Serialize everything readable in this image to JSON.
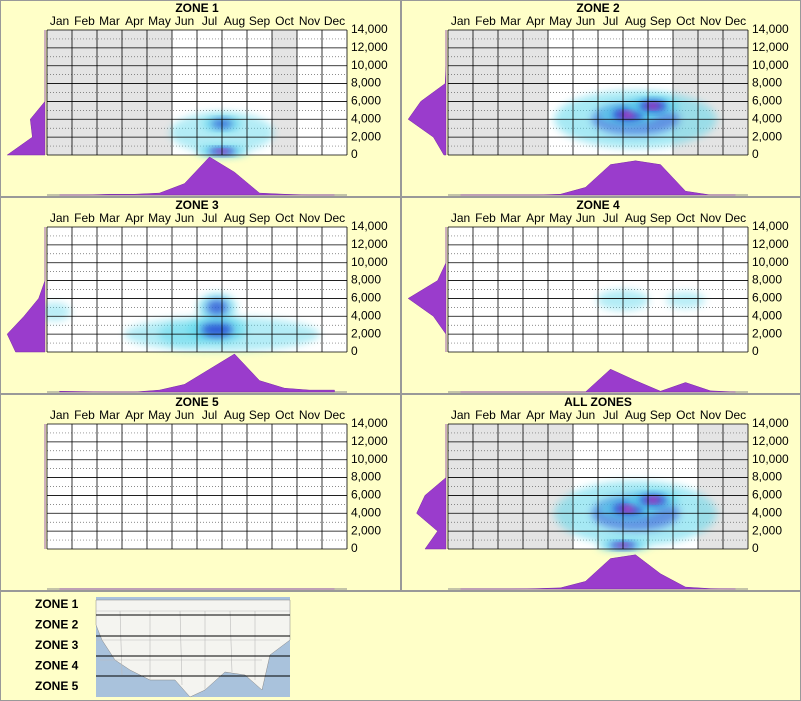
{
  "chart_data": [
    {
      "type": "heatmap",
      "title": "ZONE 1",
      "categories": [
        "Jan",
        "Feb",
        "Mar",
        "Apr",
        "May",
        "Jun",
        "Jul",
        "Aug",
        "Sep",
        "Oct",
        "Nov",
        "Dec"
      ],
      "ylim": [
        0,
        14000
      ],
      "yticks": [
        0,
        {
          "value": 2000,
          "label": "2,000"
        },
        {
          "value": 4000,
          "label": "4,000"
        },
        {
          "value": 6000,
          "label": "6,000"
        },
        {
          "value": 8000,
          "label": "8,000"
        },
        {
          "value": 10000,
          "label": "10,000"
        },
        {
          "value": 12000,
          "label": "12,000"
        },
        {
          "value": 14000,
          "label": "14,000"
        }
      ],
      "shaded": [
        true,
        true,
        true,
        true,
        true,
        false,
        false,
        false,
        false,
        true,
        false,
        false
      ],
      "hotspots": [
        {
          "x": 7.0,
          "y": 2500,
          "rx": 1.6,
          "ry": 1800,
          "intensity": 0.3
        },
        {
          "x": 7.0,
          "y": 3500,
          "rx": 0.6,
          "ry": 700,
          "intensity": 0.7
        },
        {
          "x": 7.0,
          "y": 400,
          "rx": 0.8,
          "ry": 500,
          "intensity": 1.0
        }
      ],
      "month_density": [
        0,
        0,
        0.02,
        0.02,
        0.05,
        0.3,
        1.0,
        0.6,
        0.05,
        0.02,
        0,
        0
      ],
      "value_density": [
        0.9,
        0.3,
        0.35,
        0,
        0,
        0,
        0,
        0
      ]
    },
    {
      "type": "heatmap",
      "title": "ZONE 2",
      "categories": [
        "Jan",
        "Feb",
        "Mar",
        "Apr",
        "May",
        "Jun",
        "Jul",
        "Aug",
        "Sep",
        "Oct",
        "Nov",
        "Dec"
      ],
      "ylim": [
        0,
        14000
      ],
      "yticks": [
        0,
        {
          "value": 2000,
          "label": "2,000"
        },
        {
          "value": 4000,
          "label": "4,000"
        },
        {
          "value": 6000,
          "label": "6,000"
        },
        {
          "value": 8000,
          "label": "8,000"
        },
        {
          "value": 10000,
          "label": "10,000"
        },
        {
          "value": 12000,
          "label": "12,000"
        },
        {
          "value": 14000,
          "label": "14,000"
        }
      ],
      "shaded": [
        true,
        true,
        true,
        true,
        false,
        false,
        false,
        false,
        false,
        true,
        true,
        true
      ],
      "hotspots": [
        {
          "x": 7.5,
          "y": 4000,
          "rx": 2.5,
          "ry": 2500,
          "intensity": 0.5
        },
        {
          "x": 7.2,
          "y": 4500,
          "rx": 0.9,
          "ry": 900,
          "intensity": 1.0
        },
        {
          "x": 8.2,
          "y": 5500,
          "rx": 0.8,
          "ry": 800,
          "intensity": 1.0
        }
      ],
      "month_density": [
        0,
        0,
        0,
        0,
        0.02,
        0.2,
        0.8,
        0.9,
        0.8,
        0.1,
        0,
        0
      ],
      "value_density": [
        0.05,
        0.3,
        0.9,
        0.6,
        0.02,
        0,
        0,
        0
      ]
    },
    {
      "type": "heatmap",
      "title": "ZONE 3",
      "categories": [
        "Jan",
        "Feb",
        "Mar",
        "Apr",
        "May",
        "Jun",
        "Jul",
        "Aug",
        "Sep",
        "Oct",
        "Nov",
        "Dec"
      ],
      "ylim": [
        0,
        14000
      ],
      "yticks": [
        0,
        {
          "value": 2000,
          "label": "2,000"
        },
        {
          "value": 4000,
          "label": "4,000"
        },
        {
          "value": 6000,
          "label": "6,000"
        },
        {
          "value": 8000,
          "label": "8,000"
        },
        {
          "value": 10000,
          "label": "10,000"
        },
        {
          "value": 12000,
          "label": "12,000"
        },
        {
          "value": 14000,
          "label": "14,000"
        }
      ],
      "shaded": [
        false,
        false,
        false,
        false,
        false,
        false,
        false,
        false,
        false,
        false,
        false,
        false
      ],
      "hotspots": [
        {
          "x": 7.0,
          "y": 2000,
          "rx": 3.0,
          "ry": 1500,
          "intensity": 0.3
        },
        {
          "x": 0.3,
          "y": 4500,
          "rx": 0.5,
          "ry": 800,
          "intensity": 0.2
        },
        {
          "x": 5.5,
          "y": 2000,
          "rx": 0.8,
          "ry": 1000,
          "intensity": 0.4
        },
        {
          "x": 6.8,
          "y": 2500,
          "rx": 0.9,
          "ry": 1200,
          "intensity": 0.8
        },
        {
          "x": 6.8,
          "y": 5000,
          "rx": 0.6,
          "ry": 1200,
          "intensity": 0.7
        }
      ],
      "month_density": [
        0.02,
        0.01,
        0,
        0,
        0.05,
        0.2,
        0.6,
        1.0,
        0.3,
        0.1,
        0.05,
        0.05
      ],
      "value_density": [
        0.7,
        0.9,
        0.5,
        0.15,
        0,
        0,
        0,
        0
      ]
    },
    {
      "type": "heatmap",
      "title": "ZONE 4",
      "categories": [
        "Jan",
        "Feb",
        "Mar",
        "Apr",
        "May",
        "Jun",
        "Jul",
        "Aug",
        "Sep",
        "Oct",
        "Nov",
        "Dec"
      ],
      "ylim": [
        0,
        14000
      ],
      "yticks": [
        0,
        {
          "value": 2000,
          "label": "2,000"
        },
        {
          "value": 4000,
          "label": "4,000"
        },
        {
          "value": 6000,
          "label": "6,000"
        },
        {
          "value": 8000,
          "label": "8,000"
        },
        {
          "value": 10000,
          "label": "10,000"
        },
        {
          "value": 12000,
          "label": "12,000"
        },
        {
          "value": 14000,
          "label": "14,000"
        }
      ],
      "shaded": [
        false,
        false,
        false,
        false,
        false,
        false,
        false,
        false,
        false,
        false,
        false,
        false
      ],
      "hotspots": [
        {
          "x": 7.0,
          "y": 5800,
          "rx": 0.8,
          "ry": 900,
          "intensity": 0.3
        },
        {
          "x": 9.5,
          "y": 5800,
          "rx": 0.6,
          "ry": 700,
          "intensity": 0.2
        }
      ],
      "month_density": [
        0,
        0,
        0,
        0,
        0,
        0,
        0.6,
        0.3,
        0.02,
        0.25,
        0.03,
        0
      ],
      "value_density": [
        0,
        0,
        0.3,
        0.9,
        0.2,
        0,
        0,
        0
      ]
    },
    {
      "type": "heatmap",
      "title": "ZONE 5",
      "categories": [
        "Jan",
        "Feb",
        "Mar",
        "Apr",
        "May",
        "Jun",
        "Jul",
        "Aug",
        "Sep",
        "Oct",
        "Nov",
        "Dec"
      ],
      "ylim": [
        0,
        14000
      ],
      "yticks": [
        0,
        {
          "value": 2000,
          "label": "2,000"
        },
        {
          "value": 4000,
          "label": "4,000"
        },
        {
          "value": 6000,
          "label": "6,000"
        },
        {
          "value": 8000,
          "label": "8,000"
        },
        {
          "value": 10000,
          "label": "10,000"
        },
        {
          "value": 12000,
          "label": "12,000"
        },
        {
          "value": 14000,
          "label": "14,000"
        }
      ],
      "shaded": [
        false,
        false,
        false,
        false,
        false,
        false,
        false,
        false,
        false,
        false,
        false,
        false
      ],
      "hotspots": [],
      "month_density": [
        0,
        0,
        0,
        0,
        0,
        0,
        0,
        0,
        0,
        0,
        0,
        0
      ],
      "value_density": [
        0,
        0,
        0,
        0,
        0,
        0,
        0,
        0
      ]
    },
    {
      "type": "heatmap",
      "title": "ALL ZONES",
      "categories": [
        "Jan",
        "Feb",
        "Mar",
        "Apr",
        "May",
        "Jun",
        "Jul",
        "Aug",
        "Sep",
        "Oct",
        "Nov",
        "Dec"
      ],
      "ylim": [
        0,
        14000
      ],
      "yticks": [
        0,
        {
          "value": 2000,
          "label": "2,000"
        },
        {
          "value": 4000,
          "label": "4,000"
        },
        {
          "value": 6000,
          "label": "6,000"
        },
        {
          "value": 8000,
          "label": "8,000"
        },
        {
          "value": 10000,
          "label": "10,000"
        },
        {
          "value": 12000,
          "label": "12,000"
        },
        {
          "value": 14000,
          "label": "14,000"
        }
      ],
      "shaded": [
        true,
        true,
        true,
        true,
        true,
        false,
        false,
        false,
        false,
        false,
        true,
        true
      ],
      "hotspots": [
        {
          "x": 7.5,
          "y": 4000,
          "rx": 2.5,
          "ry": 2800,
          "intensity": 0.5
        },
        {
          "x": 7.2,
          "y": 4500,
          "rx": 0.9,
          "ry": 900,
          "intensity": 0.9
        },
        {
          "x": 8.2,
          "y": 5500,
          "rx": 0.8,
          "ry": 800,
          "intensity": 0.9
        },
        {
          "x": 7.0,
          "y": 400,
          "rx": 0.8,
          "ry": 500,
          "intensity": 1.0
        }
      ],
      "month_density": [
        0,
        0,
        0,
        0.01,
        0.03,
        0.2,
        0.8,
        0.9,
        0.4,
        0.05,
        0.01,
        0
      ],
      "value_density": [
        0.5,
        0.2,
        0.7,
        0.5,
        0,
        0,
        0,
        0
      ]
    }
  ],
  "legend": {
    "zones": [
      "ZONE 1",
      "ZONE 2",
      "ZONE 3",
      "ZONE 4",
      "ZONE 5"
    ]
  }
}
